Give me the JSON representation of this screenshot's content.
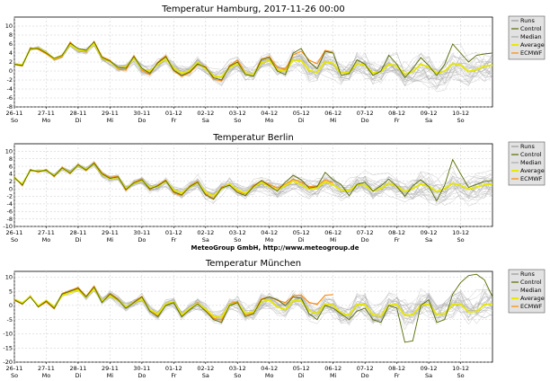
{
  "credit": "MeteoGroup GmbH, http://www.meteogroup.de",
  "legend_items": [
    {
      "label": "Runs",
      "color": "#9a9a9a"
    },
    {
      "label": "Control",
      "color": "#556b00"
    },
    {
      "label": "Median",
      "color": "#aaaaaa"
    },
    {
      "label": "Average",
      "color": "#e8e800"
    },
    {
      "label": "ECMWF",
      "color": "#ff8800"
    }
  ],
  "chart_data": [
    {
      "type": "line",
      "title": "Temperatur Hamburg, 2017-11-26 00:00",
      "xlabel": "",
      "ylabel": "",
      "ylim": [
        -8,
        12
      ],
      "yticks": [
        10,
        8,
        6,
        4,
        2,
        0,
        -2,
        -4,
        -6,
        -8
      ],
      "grid": true,
      "legend": "right",
      "x_ticks": [
        {
          "date": "26-11",
          "day": "So"
        },
        {
          "date": "27-11",
          "day": "Mo"
        },
        {
          "date": "28-11",
          "day": "Di"
        },
        {
          "date": "29-11",
          "day": "Mi"
        },
        {
          "date": "30-11",
          "day": "Do"
        },
        {
          "date": "01-12",
          "day": "Fr"
        },
        {
          "date": "02-12",
          "day": "Sa"
        },
        {
          "date": "03-12",
          "day": "So"
        },
        {
          "date": "04-12",
          "day": "Mo"
        },
        {
          "date": "05-12",
          "day": "Di"
        },
        {
          "date": "06-12",
          "day": "Mi"
        },
        {
          "date": "07-12",
          "day": "Do"
        },
        {
          "date": "08-12",
          "day": "Fr"
        },
        {
          "date": "09-12",
          "day": "Sa"
        },
        {
          "date": "10-12",
          "day": "So"
        }
      ],
      "x_days": [
        0,
        0.25,
        0.5,
        0.75,
        1,
        1.25,
        1.5,
        1.75,
        2,
        2.25,
        2.5,
        2.75,
        3,
        3.25,
        3.5,
        3.75,
        4,
        4.25,
        4.5,
        4.75,
        5,
        5.25,
        5.5,
        5.75,
        6,
        6.25,
        6.5,
        6.75,
        7,
        7.25,
        7.5,
        7.75,
        8,
        8.25,
        8.5,
        8.75,
        9,
        9.25,
        9.5,
        9.75,
        10,
        10.25,
        10.5,
        10.75,
        11,
        11.25,
        11.5,
        11.75,
        12,
        12.25,
        12.5,
        12.75,
        13,
        13.25,
        13.5,
        13.75,
        14,
        14.25,
        14.5,
        14.75,
        15
      ],
      "series": [
        {
          "name": "Control",
          "values": [
            1.5,
            1.2,
            5.0,
            5.0,
            4.0,
            2.8,
            3.5,
            6.2,
            5.0,
            4.6,
            6.5,
            3.0,
            2.2,
            0.8,
            0.6,
            3.2,
            0.6,
            -0.5,
            1.8,
            3.2,
            0.2,
            -1.0,
            -0.2,
            1.6,
            0.8,
            -1.5,
            -2.0,
            1.0,
            2.0,
            -0.8,
            -1.2,
            2.5,
            3.0,
            0.0,
            -0.8,
            4.0,
            5.0,
            2.0,
            0.5,
            4.4,
            4.0,
            -1.0,
            -0.6,
            2.5,
            1.5,
            -1.0,
            0.0,
            3.5,
            1.5,
            -1.5,
            0.5,
            3.0,
            1.2,
            -1.0,
            1.5,
            6.0,
            4.0,
            2.0,
            3.5,
            3.8,
            4.0
          ]
        },
        {
          "name": "Median",
          "values": [
            1.5,
            1.3,
            4.8,
            5.2,
            4.2,
            2.6,
            3.4,
            6.0,
            4.6,
            4.4,
            6.2,
            2.8,
            2.0,
            0.6,
            0.8,
            2.8,
            0.4,
            -0.2,
            1.4,
            2.6,
            0.6,
            -0.6,
            0.0,
            1.8,
            0.4,
            -1.2,
            -1.4,
            0.6,
            1.6,
            -0.6,
            -0.8,
            1.8,
            2.2,
            0.2,
            -0.2,
            2.4,
            2.2,
            0.0,
            -0.4,
            2.0,
            1.6,
            -0.6,
            -0.4,
            1.6,
            1.2,
            -0.6,
            -0.2,
            1.4,
            1.0,
            -0.8,
            -0.2,
            1.4,
            0.8,
            -0.6,
            -0.1,
            1.6,
            1.2,
            -0.2,
            0.2,
            1.0,
            1.2
          ]
        },
        {
          "name": "Average",
          "values": [
            1.6,
            1.4,
            4.9,
            5.1,
            4.1,
            2.7,
            3.5,
            5.9,
            4.7,
            4.5,
            6.1,
            2.9,
            2.1,
            0.7,
            0.9,
            2.9,
            0.5,
            -0.1,
            1.5,
            2.7,
            0.7,
            -0.5,
            0.1,
            1.9,
            0.5,
            -1.1,
            -1.3,
            0.7,
            1.7,
            -0.5,
            -0.7,
            1.9,
            2.3,
            0.3,
            -0.1,
            2.5,
            2.3,
            0.1,
            -0.3,
            2.1,
            1.7,
            -0.5,
            -0.3,
            1.7,
            1.3,
            -0.5,
            -0.1,
            1.5,
            1.1,
            -0.7,
            -0.1,
            1.5,
            0.9,
            -0.5,
            0.0,
            1.7,
            1.3,
            -0.1,
            0.3,
            1.1,
            1.3
          ]
        },
        {
          "name": "ECMWF",
          "values": [
            1.4,
            1.1,
            5.2,
            4.8,
            3.8,
            2.5,
            3.2,
            6.4,
            4.8,
            4.2,
            6.6,
            3.2,
            2.4,
            0.4,
            0.2,
            3.4,
            0.2,
            -0.8,
            2.0,
            3.4,
            0.0,
            -1.2,
            -0.4,
            1.4,
            1.0,
            -1.8,
            -2.2,
            1.2,
            2.4,
            -0.4,
            -0.8,
            2.6,
            3.2,
            0.8,
            0.4,
            3.6,
            4.4,
            2.4,
            1.6,
            4.6,
            4.2
          ]
        }
      ]
    },
    {
      "type": "line",
      "title": "Temperatur Berlin",
      "xlabel": "",
      "ylabel": "",
      "ylim": [
        -10,
        12
      ],
      "yticks": [
        10,
        8,
        6,
        4,
        2,
        0,
        -2,
        -4,
        -6,
        -8,
        -10
      ],
      "grid": true,
      "legend": "right",
      "x_ticks": [
        {
          "date": "26-11",
          "day": "So"
        },
        {
          "date": "27-11",
          "day": "Mo"
        },
        {
          "date": "28-11",
          "day": "Di"
        },
        {
          "date": "29-11",
          "day": "Mi"
        },
        {
          "date": "30-11",
          "day": "Do"
        },
        {
          "date": "01-12",
          "day": "Fr"
        },
        {
          "date": "02-12",
          "day": "Sa"
        },
        {
          "date": "03-12",
          "day": "So"
        },
        {
          "date": "04-12",
          "day": "Mo"
        },
        {
          "date": "05-12",
          "day": "Di"
        },
        {
          "date": "06-12",
          "day": "Mi"
        },
        {
          "date": "07-12",
          "day": "Do"
        },
        {
          "date": "08-12",
          "day": "Fr"
        },
        {
          "date": "09-12",
          "day": "Sa"
        },
        {
          "date": "10-12",
          "day": "So"
        }
      ],
      "x_days": [
        0,
        0.25,
        0.5,
        0.75,
        1,
        1.25,
        1.5,
        1.75,
        2,
        2.25,
        2.5,
        2.75,
        3,
        3.25,
        3.5,
        3.75,
        4,
        4.25,
        4.5,
        4.75,
        5,
        5.25,
        5.5,
        5.75,
        6,
        6.25,
        6.5,
        6.75,
        7,
        7.25,
        7.5,
        7.75,
        8,
        8.25,
        8.5,
        8.75,
        9,
        9.25,
        9.5,
        9.75,
        10,
        10.25,
        10.5,
        10.75,
        11,
        11.25,
        11.5,
        11.75,
        12,
        12.25,
        12.5,
        12.75,
        13,
        13.25,
        13.5,
        13.75,
        14,
        14.25,
        14.5,
        14.75,
        15
      ],
      "series": [
        {
          "name": "Control",
          "values": [
            3.0,
            1.0,
            5.0,
            4.6,
            5.0,
            3.4,
            5.6,
            4.2,
            6.4,
            5.0,
            6.8,
            4.0,
            2.8,
            3.2,
            -0.2,
            1.6,
            2.4,
            0.0,
            0.8,
            2.2,
            -0.8,
            -1.6,
            0.6,
            1.8,
            -1.6,
            -2.8,
            0.2,
            1.0,
            -1.0,
            -1.8,
            0.6,
            2.2,
            0.8,
            -0.6,
            1.8,
            3.6,
            2.4,
            0.2,
            0.6,
            4.4,
            2.4,
            1.2,
            -1.8,
            1.2,
            1.8,
            -0.6,
            0.8,
            2.6,
            0.6,
            -2.0,
            0.8,
            2.4,
            0.6,
            -3.2,
            1.0,
            7.8,
            4.0,
            0.4,
            1.2,
            2.0,
            2.2
          ]
        },
        {
          "name": "Median",
          "values": [
            2.8,
            1.2,
            4.8,
            4.8,
            4.8,
            3.6,
            5.4,
            4.4,
            6.2,
            5.2,
            6.6,
            3.8,
            2.6,
            3.0,
            0.0,
            1.4,
            2.2,
            0.2,
            0.6,
            2.0,
            -0.4,
            -1.2,
            0.4,
            1.6,
            -1.0,
            -2.0,
            0.0,
            1.2,
            -0.4,
            -1.2,
            0.4,
            1.6,
            0.6,
            -0.4,
            0.8,
            2.0,
            1.0,
            -0.2,
            0.2,
            1.8,
            1.0,
            -0.4,
            -0.6,
            1.0,
            0.8,
            -0.6,
            0.0,
            1.4,
            0.6,
            -0.8,
            0.0,
            1.2,
            0.6,
            -0.8,
            0.0,
            1.4,
            0.8,
            -0.2,
            0.4,
            1.0,
            1.2
          ]
        },
        {
          "name": "Average",
          "values": [
            2.9,
            1.3,
            4.9,
            4.7,
            4.9,
            3.5,
            5.5,
            4.3,
            6.3,
            5.1,
            6.7,
            3.9,
            2.7,
            3.1,
            0.1,
            1.5,
            2.3,
            0.3,
            0.7,
            2.1,
            -0.3,
            -1.1,
            0.5,
            1.7,
            -0.9,
            -1.9,
            0.1,
            1.3,
            -0.3,
            -1.1,
            0.5,
            1.7,
            0.7,
            -0.3,
            0.9,
            2.1,
            1.1,
            -0.1,
            0.3,
            1.9,
            1.1,
            -0.3,
            -0.5,
            1.1,
            0.9,
            -0.5,
            0.1,
            1.5,
            0.7,
            -0.7,
            0.1,
            1.3,
            0.7,
            -0.7,
            0.1,
            1.5,
            0.9,
            -0.1,
            0.5,
            1.1,
            1.3
          ]
        },
        {
          "name": "ECMWF",
          "values": [
            3.2,
            0.8,
            5.2,
            4.4,
            5.2,
            3.2,
            5.8,
            4.0,
            6.6,
            4.8,
            7.0,
            4.2,
            3.0,
            3.4,
            -0.4,
            1.8,
            2.6,
            -0.2,
            1.0,
            2.4,
            -1.0,
            -1.8,
            0.8,
            2.0,
            -1.4,
            -2.6,
            0.4,
            1.4,
            -0.6,
            -1.4,
            0.8,
            2.2,
            1.2,
            0.2,
            1.2,
            2.6,
            1.8,
            0.6,
            0.8,
            2.4,
            1.6
          ]
        }
      ]
    },
    {
      "type": "line",
      "title": "Temperatur München",
      "xlabel": "",
      "ylabel": "",
      "ylim": [
        -20,
        12
      ],
      "yticks": [
        10,
        5,
        0,
        -5,
        -10,
        -15,
        -20
      ],
      "grid": true,
      "legend": "right",
      "x_ticks": [
        {
          "date": "26-11",
          "day": "So"
        },
        {
          "date": "27-11",
          "day": "Mo"
        },
        {
          "date": "28-11",
          "day": "Di"
        },
        {
          "date": "29-11",
          "day": "Mi"
        },
        {
          "date": "30-11",
          "day": "Do"
        },
        {
          "date": "01-12",
          "day": "Fr"
        },
        {
          "date": "02-12",
          "day": "Sa"
        },
        {
          "date": "03-12",
          "day": "So"
        },
        {
          "date": "04-12",
          "day": "Mo"
        },
        {
          "date": "05-12",
          "day": "Di"
        },
        {
          "date": "06-12",
          "day": "Mi"
        },
        {
          "date": "07-12",
          "day": "Do"
        },
        {
          "date": "08-12",
          "day": "Fr"
        },
        {
          "date": "09-12",
          "day": "Sa"
        },
        {
          "date": "10-12",
          "day": "So"
        }
      ],
      "x_days": [
        0,
        0.25,
        0.5,
        0.75,
        1,
        1.25,
        1.5,
        1.75,
        2,
        2.25,
        2.5,
        2.75,
        3,
        3.25,
        3.5,
        3.75,
        4,
        4.25,
        4.5,
        4.75,
        5,
        5.25,
        5.5,
        5.75,
        6,
        6.25,
        6.5,
        6.75,
        7,
        7.25,
        7.5,
        7.75,
        8,
        8.25,
        8.5,
        8.75,
        9,
        9.25,
        9.5,
        9.75,
        10,
        10.25,
        10.5,
        10.75,
        11,
        11.25,
        11.5,
        11.75,
        12,
        12.25,
        12.5,
        12.75,
        13,
        13.25,
        13.5,
        13.75,
        14,
        14.25,
        14.5,
        14.75,
        15
      ],
      "series": [
        {
          "name": "Control",
          "values": [
            2.0,
            0.5,
            3.0,
            -0.5,
            1.5,
            -1.0,
            4.0,
            5.0,
            6.0,
            3.0,
            6.5,
            1.0,
            4.0,
            2.0,
            -1.0,
            1.0,
            3.0,
            -2.0,
            -4.0,
            0.0,
            1.0,
            -4.0,
            -1.5,
            0.5,
            -2.0,
            -5.0,
            -6.0,
            0.0,
            1.0,
            -4.0,
            -3.0,
            2.0,
            3.0,
            2.0,
            0.0,
            3.0,
            2.5,
            -3.0,
            -5.0,
            0.0,
            -1.0,
            -3.0,
            -5.0,
            -2.0,
            -1.0,
            -5.0,
            -6.0,
            0.0,
            -1.0,
            -13.0,
            -12.5,
            0.0,
            2.0,
            -6.0,
            -5.0,
            4.0,
            8.0,
            10.5,
            11.0,
            9.0,
            3.0
          ]
        },
        {
          "name": "Median",
          "values": [
            2.2,
            0.8,
            3.2,
            -0.2,
            1.6,
            -0.6,
            3.6,
            4.6,
            5.6,
            2.8,
            6.0,
            1.4,
            3.6,
            1.8,
            -0.6,
            0.8,
            2.4,
            -1.6,
            -3.2,
            0.4,
            1.2,
            -3.4,
            -1.2,
            0.6,
            -1.4,
            -4.0,
            -4.4,
            0.2,
            0.8,
            -3.0,
            -2.4,
            1.2,
            1.8,
            -0.6,
            -1.6,
            1.6,
            1.4,
            -2.0,
            -3.0,
            0.4,
            0.0,
            -2.8,
            -3.6,
            0.2,
            0.2,
            -3.4,
            -3.8,
            0.0,
            0.2,
            -3.6,
            -3.4,
            0.0,
            0.4,
            -3.2,
            -3.0,
            0.2,
            0.4,
            -2.4,
            -2.2,
            0.2,
            0.4
          ]
        },
        {
          "name": "Average",
          "values": [
            2.1,
            0.9,
            3.1,
            -0.1,
            1.7,
            -0.5,
            3.5,
            4.5,
            5.5,
            2.9,
            5.9,
            1.5,
            3.5,
            1.9,
            -0.5,
            0.9,
            2.3,
            -1.5,
            -3.1,
            0.5,
            1.3,
            -3.3,
            -1.1,
            0.7,
            -1.3,
            -3.9,
            -4.3,
            0.3,
            0.9,
            -2.9,
            -2.3,
            1.3,
            1.9,
            -0.5,
            -1.5,
            1.7,
            1.5,
            -1.9,
            -2.9,
            0.5,
            0.1,
            -2.7,
            -3.5,
            0.3,
            0.3,
            -3.3,
            -3.7,
            0.1,
            0.3,
            -3.5,
            -3.3,
            0.1,
            0.5,
            -3.1,
            -2.9,
            0.3,
            0.5,
            -2.3,
            -2.1,
            0.3,
            0.5
          ]
        },
        {
          "name": "ECMWF",
          "values": [
            1.8,
            0.4,
            3.4,
            -0.6,
            1.2,
            -1.2,
            4.2,
            5.2,
            6.4,
            3.2,
            6.8,
            1.2,
            4.2,
            2.2,
            -0.8,
            1.2,
            3.2,
            -1.8,
            -3.6,
            0.2,
            1.4,
            -3.8,
            -1.4,
            1.0,
            -1.6,
            -4.6,
            -5.2,
            0.6,
            1.4,
            -3.4,
            -2.6,
            2.4,
            3.0,
            1.8,
            1.0,
            3.4,
            3.6,
            1.0,
            0.4,
            3.6,
            3.8
          ]
        }
      ]
    }
  ]
}
